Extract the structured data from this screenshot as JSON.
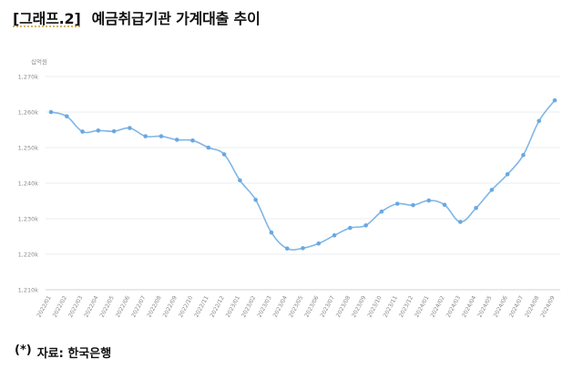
{
  "header": {
    "graph_tag": "[그래프.2]",
    "title": "예금취급기관 가계대출 추이"
  },
  "source": {
    "marker": "(*)",
    "text": "자료: 한국은행"
  },
  "chart_data": {
    "type": "line",
    "unit_label": "십억원",
    "y_ticks": [
      1210,
      1220,
      1230,
      1240,
      1250,
      1260,
      1270
    ],
    "y_tick_labels": [
      "1,210k",
      "1,220k",
      "1,230k",
      "1,240k",
      "1,250k",
      "1,260k",
      "1,270k"
    ],
    "ylim": [
      1210,
      1270
    ],
    "grid": true,
    "legend": "none",
    "colors": {
      "line": "#7fb6e6",
      "marker": "#6aa8e0",
      "grid": "#e8ecef",
      "axis": "#cfd5da",
      "tick_text": "#8a8a8a"
    },
    "categories": [
      "2022/01",
      "2022/02",
      "2022/03",
      "2022/04",
      "2022/05",
      "2022/06",
      "2022/07",
      "2022/08",
      "2022/09",
      "2022/10",
      "2022/11",
      "2022/12",
      "2023/01",
      "2023/02",
      "2023/03",
      "2023/04",
      "2023/05",
      "2023/06",
      "2023/07",
      "2023/08",
      "2023/09",
      "2023/10",
      "2023/11",
      "2023/12",
      "2024/01",
      "2024/02",
      "2024/03",
      "2024/04",
      "2024/05",
      "2024/06",
      "2024/07",
      "2024/08",
      "2024/09"
    ],
    "values": [
      1260.0,
      1258.8,
      1254.5,
      1254.8,
      1254.6,
      1255.5,
      1253.2,
      1253.2,
      1252.2,
      1252.0,
      1250.0,
      1248.1,
      1240.8,
      1235.3,
      1226.1,
      1221.6,
      1221.7,
      1223.0,
      1225.3,
      1227.4,
      1228.1,
      1232.0,
      1234.2,
      1233.8,
      1235.1,
      1233.9,
      1229.1,
      1233.0,
      1238.1,
      1242.5,
      1247.9,
      1257.5,
      1263.3
    ]
  }
}
